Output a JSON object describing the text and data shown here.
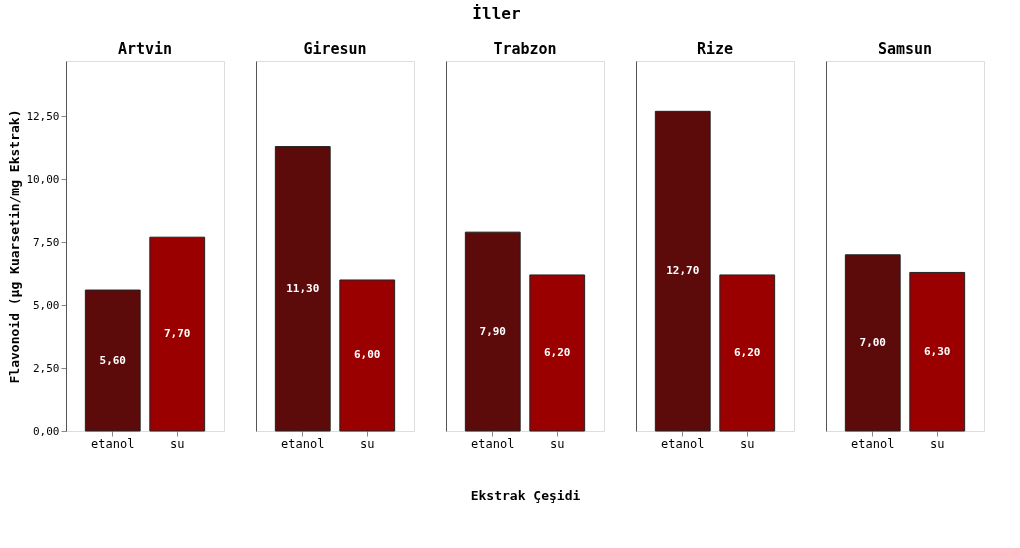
{
  "chart_data": [
    {
      "type": "bar",
      "title": "Artvin",
      "ylabel": "Flavonoid (µg Kuarsetin/mg Ekstrak)",
      "categories": [
        "etanol",
        "su"
      ],
      "values": [
        5.6,
        7.7
      ],
      "colors": [
        "#5c0a0a",
        "#9a0000"
      ],
      "value_labels": [
        "5,60",
        "7,70"
      ],
      "ylim": [
        0,
        14.7
      ],
      "yticks": [
        {
          "value": 0,
          "label": "0,00"
        },
        {
          "value": 2.5,
          "label": "2,50"
        },
        {
          "value": 5,
          "label": "5,00"
        },
        {
          "value": 7.5,
          "label": "7,50"
        },
        {
          "value": 10,
          "label": "10,00"
        },
        {
          "value": 12.5,
          "label": "12,50"
        }
      ],
      "grid": false
    },
    {
      "type": "bar",
      "title": "Giresun",
      "categories": [
        "etanol",
        "su"
      ],
      "values": [
        11.3,
        6.0
      ],
      "colors": [
        "#5c0a0a",
        "#9a0000"
      ],
      "value_labels": [
        "11,30",
        "6,00"
      ],
      "ylim": [
        0,
        14.7
      ],
      "tick_labels": "x",
      "grid": false
    },
    {
      "type": "bar",
      "title": "Trabzon",
      "xlabel": "Ekstrak Çeşidi",
      "annotations": [
        "İller"
      ],
      "categories": [
        "etanol",
        "su"
      ],
      "values": [
        7.9,
        6.2
      ],
      "colors": [
        "#5c0a0a",
        "#9a0000"
      ],
      "value_labels": [
        "7,90",
        "6,20"
      ],
      "ylim": [
        0,
        14.7
      ],
      "tick_labels": "x",
      "grid": false
    },
    {
      "type": "bar",
      "title": "Rize",
      "categories": [
        "etanol",
        "su"
      ],
      "values": [
        12.7,
        6.2
      ],
      "colors": [
        "#5c0a0a",
        "#9a0000"
      ],
      "value_labels": [
        "12,70",
        "6,20"
      ],
      "ylim": [
        0,
        14.7
      ],
      "tick_labels": "x",
      "grid": false
    },
    {
      "type": "bar",
      "title": "Samsun",
      "categories": [
        "etanol",
        "su"
      ],
      "values": [
        7.0,
        6.3
      ],
      "colors": [
        "#5c0a0a",
        "#9a0000"
      ],
      "value_labels": [
        "7,00",
        "6,30"
      ],
      "ylim": [
        0,
        14.7
      ],
      "tick_labels": "x",
      "grid": false
    }
  ]
}
